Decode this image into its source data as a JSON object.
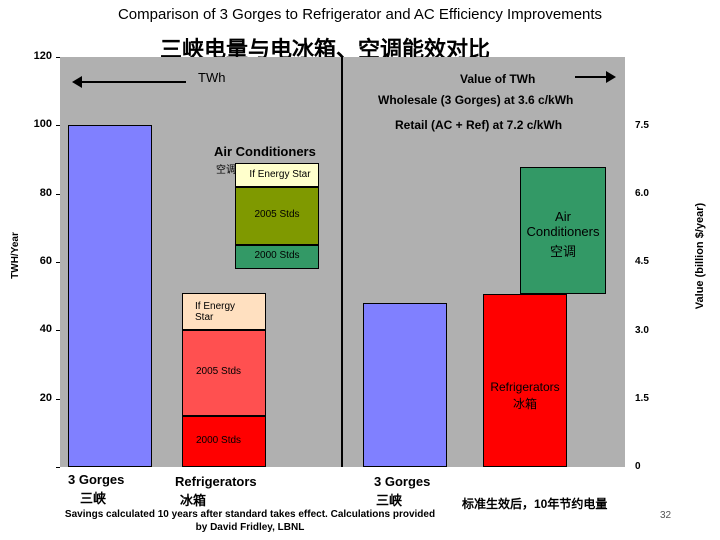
{
  "chart_data": {
    "type": "bar",
    "title": "Comparison of 3 Gorges to Refrigerator and AC Efficiency Improvements",
    "subtitle": "三峡电量与电冰箱、空调能效对比",
    "ylabel": "TWH/Year",
    "y2label": "Value (billion $/year)",
    "ylim": [
      0,
      120
    ],
    "y2lim": [
      0,
      9
    ],
    "yticks": [
      "120",
      "100",
      "80",
      "60",
      "40",
      "20"
    ],
    "y2ticks": [
      "7.5",
      "6.0",
      "4.5",
      "3.0",
      "1.5",
      "0"
    ],
    "left_panel": {
      "header": "TWh",
      "bars": [
        {
          "name": "3 Gorges 三峡",
          "category": "3 Gorges",
          "category_zh": "三峡",
          "value": 100
        },
        {
          "name": "Air Conditioners",
          "category": "Air Conditioners",
          "category_zh": "空调",
          "base": 58,
          "segments": [
            {
              "label": "2000 Stds",
              "from": 58,
              "to": 65
            },
            {
              "label": "2005 Stds",
              "from": 65,
              "to": 82
            },
            {
              "label": "If Energy Star",
              "from": 82,
              "to": 89
            }
          ]
        },
        {
          "name": "Refrigerators 冰箱",
          "category": "Refrigerators",
          "category_zh": "冰箱",
          "base": 0,
          "segments": [
            {
              "label": "2000 Stds",
              "from": 0,
              "to": 15
            },
            {
              "label": "2005 Stds",
              "from": 15,
              "to": 40
            },
            {
              "label": "If Energy Star",
              "from": 40,
              "to": 51
            }
          ]
        }
      ]
    },
    "right_panel": {
      "header": "Value of TWh",
      "price_notes": [
        "Wholesale (3 Gorges) at 3.6 c/kWh",
        "Retail (AC + Ref) at 7.2 c/kWh"
      ],
      "bars": [
        {
          "name": "3 Gorges 三峡",
          "category": "3 Gorges",
          "category_zh": "三峡",
          "value": 3.6
        },
        {
          "name": "Refrigerators 冰箱",
          "label": "Refrigerators",
          "label_zh": "冰箱",
          "from": 0,
          "to": 3.8
        },
        {
          "name": "Air Conditioners 空调",
          "label": "Air Conditioners",
          "label_zh": "空调",
          "from": 3.8,
          "to": 6.6
        }
      ],
      "footer": "标准生效后，10年节约电量"
    },
    "annotations": {
      "ac_label": "Air Conditioners",
      "ac_label_zh": "空调"
    },
    "credit": "Savings calculated 10 years after standard takes effect. Calculations provided by David Fridley, LBNL",
    "colors": {
      "background": "#b0b0b0",
      "gorges": "#8080ff",
      "ac_energy_star": "#ffffcc",
      "ac_2005": "#7f9900",
      "ac_2000": "#339966",
      "ref_energy_star": "#ffe0c0",
      "ref_2005": "#ff5050",
      "ref_2000": "#ff0000",
      "value_ref": "#ff0000",
      "value_ac": "#339966"
    }
  },
  "page_number": "32"
}
